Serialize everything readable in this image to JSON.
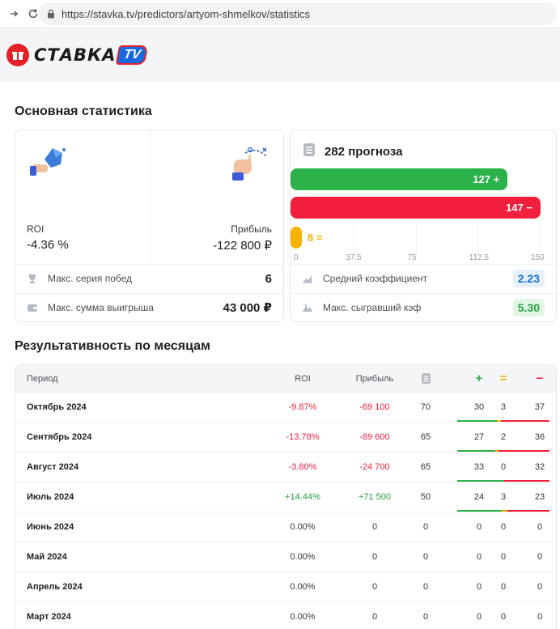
{
  "browser": {
    "url": "https://stavka.tv/predictors/artyom-shmelkov/statistics"
  },
  "logo": {
    "word": "СТАВКА",
    "tv": "TV"
  },
  "main_stats": {
    "title": "Основная статистика",
    "roi_label": "ROI",
    "roi_value": "-4.36 %",
    "profit_label": "Прибыль",
    "profit_value": "-122 800 ₽",
    "rows": [
      {
        "icon": "trophy-icon",
        "label": "Макс. серия побед",
        "value": "6"
      },
      {
        "icon": "wallet-icon",
        "label": "Макс. сумма выигрыша",
        "value": "43 000 ₽"
      }
    ]
  },
  "forecasts": {
    "title": "282 прогноза",
    "bars": [
      {
        "label": "127 +",
        "value": 127,
        "kind": "win"
      },
      {
        "label": "147 −",
        "value": 147,
        "kind": "loss"
      },
      {
        "label": "8 =",
        "value": 8,
        "kind": "draw"
      }
    ],
    "axis_max": 150,
    "ticks": [
      "0",
      "37.5",
      "75",
      "112.5",
      "150"
    ],
    "rows": [
      {
        "icon": "chart-icon",
        "label": "Средний коэффициент",
        "value": "2.23",
        "color": "blue"
      },
      {
        "icon": "mountain-icon",
        "label": "Макс. сыгравший кэф",
        "value": "5.30",
        "color": "green"
      }
    ]
  },
  "monthly": {
    "title": "Результативность по месяцам",
    "headers": {
      "period": "Период",
      "roi": "ROI",
      "profit": "Прибыль",
      "win": "+",
      "draw": "=",
      "loss": "−"
    },
    "rows": [
      {
        "period": "Октябрь 2024",
        "roi": "-9.87%",
        "profit": "-69 100",
        "total": "70",
        "win": "30",
        "draw": "3",
        "loss": "37",
        "sign": "neg",
        "w": 30,
        "d": 3,
        "l": 37
      },
      {
        "period": "Сентябрь 2024",
        "roi": "-13.78%",
        "profit": "-89 600",
        "total": "65",
        "win": "27",
        "draw": "2",
        "loss": "36",
        "sign": "neg",
        "w": 27,
        "d": 2,
        "l": 36
      },
      {
        "period": "Август 2024",
        "roi": "-3.80%",
        "profit": "-24 700",
        "total": "65",
        "win": "33",
        "draw": "0",
        "loss": "32",
        "sign": "neg",
        "w": 33,
        "d": 0,
        "l": 32
      },
      {
        "period": "Июль 2024",
        "roi": "+14.44%",
        "profit": "+71 500",
        "total": "50",
        "win": "24",
        "draw": "3",
        "loss": "23",
        "sign": "pos",
        "w": 24,
        "d": 3,
        "l": 23
      },
      {
        "period": "Июнь 2024",
        "roi": "0.00%",
        "profit": "0",
        "total": "0",
        "win": "0",
        "draw": "0",
        "loss": "0",
        "sign": "zero",
        "w": 0,
        "d": 0,
        "l": 0
      },
      {
        "period": "Май 2024",
        "roi": "0.00%",
        "profit": "0",
        "total": "0",
        "win": "0",
        "draw": "0",
        "loss": "0",
        "sign": "zero",
        "w": 0,
        "d": 0,
        "l": 0
      },
      {
        "period": "Апрель 2024",
        "roi": "0.00%",
        "profit": "0",
        "total": "0",
        "win": "0",
        "draw": "0",
        "loss": "0",
        "sign": "zero",
        "w": 0,
        "d": 0,
        "l": 0
      },
      {
        "period": "Март 2024",
        "roi": "0.00%",
        "profit": "0",
        "total": "0",
        "win": "0",
        "draw": "0",
        "loss": "0",
        "sign": "zero",
        "w": 0,
        "d": 0,
        "l": 0
      }
    ]
  },
  "colors": {
    "win": "#2bb34a",
    "loss": "#f2203d",
    "draw": "#f5b300",
    "accent": "#1769e0"
  }
}
